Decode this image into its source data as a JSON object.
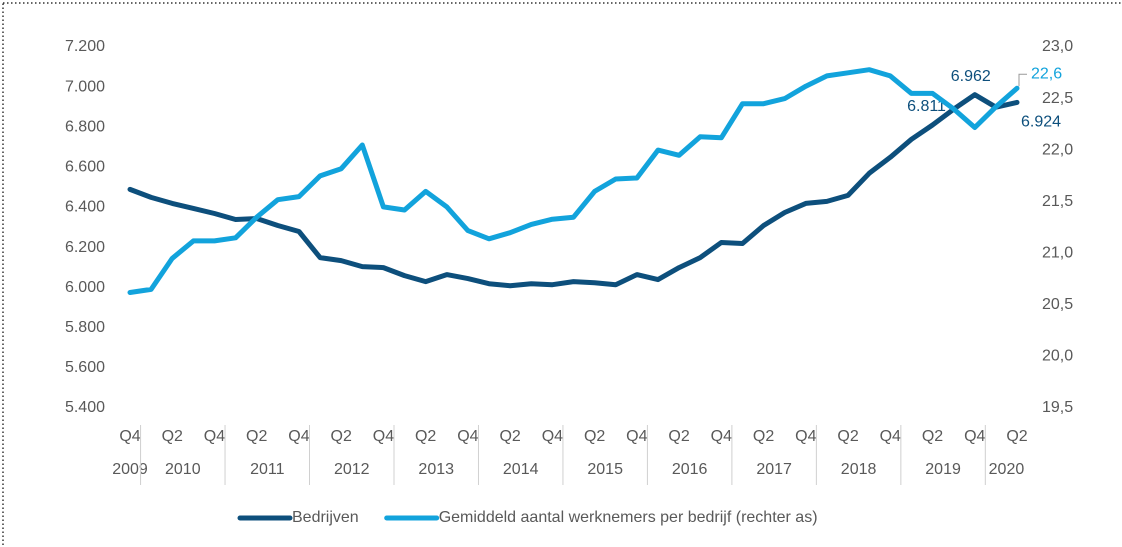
{
  "chart_data": {
    "type": "line",
    "categories": [
      "Q4",
      null,
      "Q2",
      null,
      "Q4",
      null,
      "Q2",
      null,
      "Q4",
      null,
      "Q2",
      null,
      "Q4",
      null,
      "Q2",
      null,
      "Q4",
      null,
      "Q2",
      null,
      "Q4",
      null,
      "Q2",
      null,
      "Q4",
      null,
      "Q2",
      null,
      "Q4",
      null,
      "Q2",
      null,
      "Q4",
      null,
      "Q2",
      null,
      "Q4",
      null,
      "Q2",
      null,
      "Q4",
      null,
      "Q2"
    ],
    "x_groups": [
      "2009",
      "2010",
      "2011",
      "2012",
      "2013",
      "2014",
      "2015",
      "2016",
      "2017",
      "2018",
      "2019",
      "2020"
    ],
    "series": [
      {
        "name": "Bedrijven",
        "color": "#0d4f7c",
        "values": [
          6490,
          6450,
          6420,
          6395,
          6370,
          6340,
          6345,
          6310,
          6280,
          6150,
          6135,
          6105,
          6100,
          6060,
          6030,
          6065,
          6045,
          6020,
          6010,
          6020,
          6015,
          6030,
          6025,
          6015,
          6065,
          6040,
          6100,
          6150,
          6225,
          6220,
          6310,
          6375,
          6420,
          6430,
          6460,
          6570,
          6650,
          6740,
          6811,
          6890,
          6962,
          6900,
          6924
        ],
        "value_labels": [
          null,
          null,
          null,
          null,
          null,
          null,
          null,
          null,
          null,
          null,
          null,
          null,
          null,
          null,
          null,
          null,
          null,
          null,
          null,
          null,
          null,
          null,
          null,
          null,
          null,
          null,
          null,
          null,
          null,
          null,
          null,
          null,
          null,
          null,
          null,
          null,
          null,
          null,
          "6.811",
          null,
          "6.962",
          null,
          "6.924"
        ]
      },
      {
        "name": "Gemiddeld aantal werknemers per bedrijf (rechter as)",
        "color": "#12a3dc",
        "axis": "y2",
        "values": [
          20.62,
          20.65,
          20.95,
          21.12,
          21.12,
          21.15,
          21.35,
          21.52,
          21.55,
          21.75,
          21.82,
          22.05,
          21.45,
          21.42,
          21.6,
          21.45,
          21.22,
          21.14,
          21.2,
          21.28,
          21.33,
          21.35,
          21.6,
          21.72,
          21.73,
          22.0,
          21.95,
          22.13,
          22.12,
          22.45,
          22.45,
          22.5,
          22.62,
          22.72,
          22.75,
          22.78,
          22.72,
          22.55,
          22.55,
          22.4,
          22.22,
          22.42,
          22.6
        ],
        "value_labels": [
          null,
          null,
          null,
          null,
          null,
          null,
          null,
          null,
          null,
          null,
          null,
          null,
          null,
          null,
          null,
          null,
          null,
          null,
          null,
          null,
          null,
          null,
          null,
          null,
          null,
          null,
          null,
          null,
          null,
          null,
          null,
          null,
          null,
          null,
          null,
          null,
          null,
          null,
          null,
          null,
          null,
          null,
          "22,6"
        ]
      }
    ],
    "ylim": [
      5400,
      7200
    ],
    "yticks": [
      {
        "value": 5400,
        "label": "5.400"
      },
      {
        "value": 5600,
        "label": "5.600"
      },
      {
        "value": 5800,
        "label": "5.800"
      },
      {
        "value": 6000,
        "label": "6.000"
      },
      {
        "value": 6200,
        "label": "6.200"
      },
      {
        "value": 6400,
        "label": "6.400"
      },
      {
        "value": 6600,
        "label": "6.600"
      },
      {
        "value": 6800,
        "label": "6.800"
      },
      {
        "value": 7000,
        "label": "7.000"
      },
      {
        "value": 7200,
        "label": "7.200"
      }
    ],
    "y2lim": [
      19.5,
      23.0
    ],
    "y2ticks": [
      {
        "value": 19.5,
        "label": "19,5"
      },
      {
        "value": 20.0,
        "label": "20,0"
      },
      {
        "value": 20.5,
        "label": "20,5"
      },
      {
        "value": 21.0,
        "label": "21,0"
      },
      {
        "value": 21.5,
        "label": "21,5"
      },
      {
        "value": 22.0,
        "label": "22,0"
      },
      {
        "value": 22.5,
        "label": "22,5"
      },
      {
        "value": 23.0,
        "label": "23,0"
      }
    ],
    "grid": false,
    "legend": "bottom"
  }
}
